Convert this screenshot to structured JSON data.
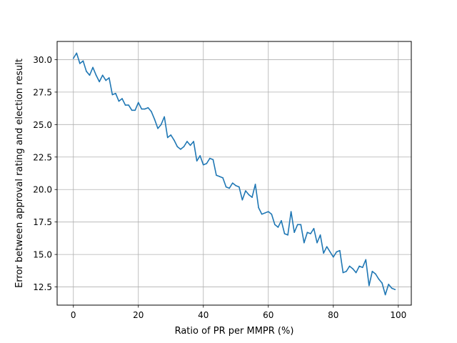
{
  "chart_data": {
    "type": "line",
    "title": "",
    "xlabel": "Ratio of PR per MMPR (%)",
    "ylabel": "Error between approval rating and election result",
    "xlim": [
      -5,
      104
    ],
    "ylim": [
      11.1,
      31.4
    ],
    "xticks": [
      0,
      20,
      40,
      60,
      80,
      100
    ],
    "xtick_labels": [
      "0",
      "20",
      "40",
      "60",
      "80",
      "100"
    ],
    "yticks": [
      12.5,
      15.0,
      17.5,
      20.0,
      22.5,
      25.0,
      27.5,
      30.0
    ],
    "ytick_labels": [
      "12.5",
      "15.0",
      "17.5",
      "20.0",
      "22.5",
      "25.0",
      "27.5",
      "30.0"
    ],
    "grid": true,
    "line_color": "#1f77b4",
    "series": [
      {
        "x": [
          0,
          1,
          2,
          3,
          4,
          5,
          6,
          7,
          8,
          9,
          10,
          11,
          12,
          13,
          14,
          15,
          16,
          17,
          18,
          19,
          20,
          21,
          22,
          23,
          24,
          25,
          26,
          27,
          28,
          29,
          30,
          31,
          32,
          33,
          34,
          35,
          36,
          37,
          38,
          39,
          40,
          41,
          42,
          43,
          44,
          45,
          46,
          47,
          48,
          49,
          50,
          51,
          52,
          53,
          54,
          55,
          56,
          57,
          58,
          59,
          60,
          61,
          62,
          63,
          64,
          65,
          66,
          67,
          68,
          69,
          70,
          71,
          72,
          73,
          74,
          75,
          76,
          77,
          78,
          79,
          80,
          81,
          82,
          83,
          84,
          85,
          86,
          87,
          88,
          89,
          90,
          91,
          92,
          93,
          94,
          95,
          96,
          97,
          98,
          99
        ],
        "values": [
          30.1,
          30.5,
          29.7,
          29.9,
          29.1,
          28.8,
          29.4,
          28.8,
          28.3,
          28.8,
          28.4,
          28.6,
          27.3,
          27.4,
          26.8,
          27.0,
          26.5,
          26.5,
          26.1,
          26.1,
          26.7,
          26.2,
          26.2,
          26.3,
          26.0,
          25.4,
          24.7,
          25.0,
          25.6,
          24.0,
          24.2,
          23.8,
          23.3,
          23.1,
          23.3,
          23.7,
          23.4,
          23.7,
          22.2,
          22.6,
          21.9,
          22.0,
          22.4,
          22.3,
          21.1,
          21.0,
          20.9,
          20.2,
          20.1,
          20.5,
          20.3,
          20.2,
          19.2,
          19.9,
          19.6,
          19.4,
          20.4,
          18.6,
          18.1,
          18.2,
          18.3,
          18.1,
          17.3,
          17.1,
          17.6,
          16.6,
          16.5,
          18.3,
          16.7,
          17.3,
          17.3,
          15.9,
          16.7,
          16.6,
          17.0,
          15.9,
          16.5,
          15.1,
          15.6,
          15.2,
          14.8,
          15.2,
          15.3,
          13.6,
          13.7,
          14.1,
          13.9,
          13.6,
          14.1,
          14.0,
          14.6,
          12.6,
          13.7,
          13.5,
          13.1,
          12.8,
          11.9,
          12.7,
          12.4,
          12.3
        ]
      }
    ]
  }
}
